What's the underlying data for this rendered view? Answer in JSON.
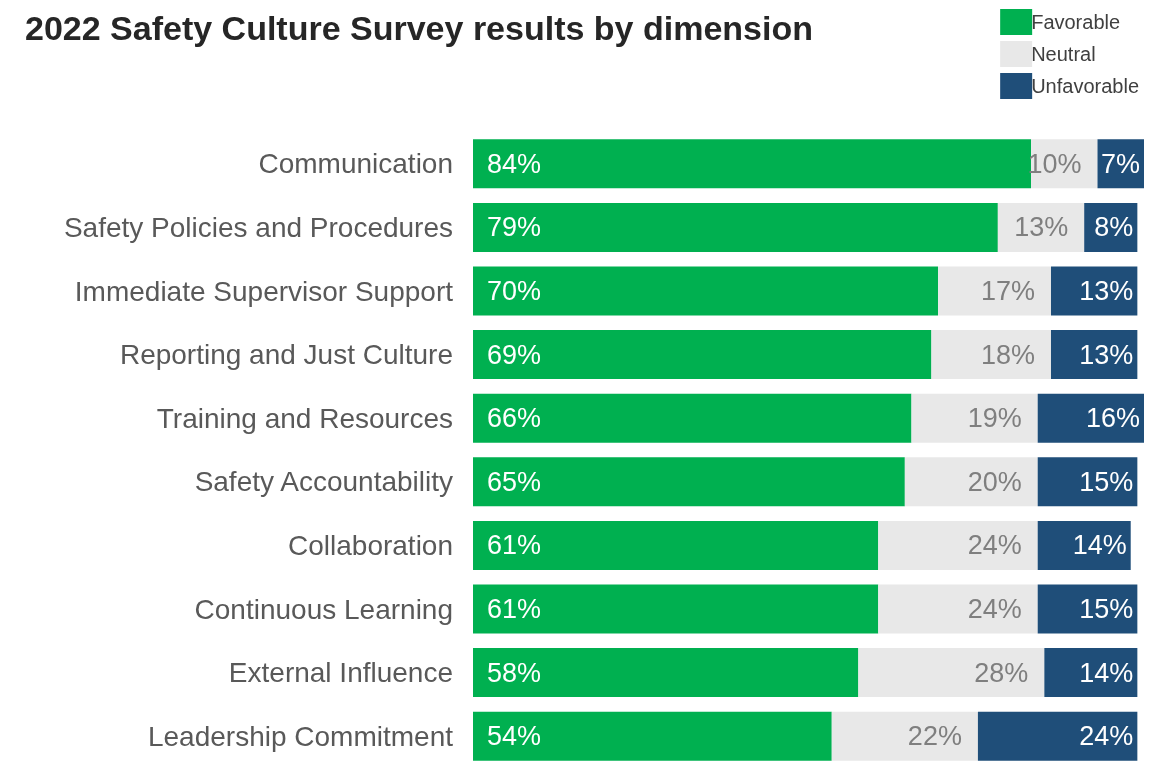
{
  "chart_data": {
    "type": "bar",
    "title": "2022 Safety Culture Survey results by dimension",
    "orientation": "horizontal",
    "stacked": true,
    "legend": "top right",
    "categories": [
      "Communication",
      "Safety Policies and Procedures",
      "Immediate Supervisor Support",
      "Reporting and Just Culture",
      "Training and Resources",
      "Safety Accountability",
      "Collaboration",
      "Continuous Learning",
      "External Influence",
      "Leadership Commitment"
    ],
    "series": [
      {
        "name": "Favorable",
        "color": "#00b050",
        "values": [
          84,
          79,
          70,
          69,
          66,
          65,
          61,
          61,
          58,
          54
        ],
        "value_labels": [
          "84%",
          "79%",
          "70%",
          "69%",
          "66%",
          "65%",
          "61%",
          "61%",
          "58%",
          "54%"
        ]
      },
      {
        "name": "Neutral",
        "color": "#e8e8e8",
        "values": [
          10,
          13,
          17,
          18,
          19,
          20,
          24,
          24,
          28,
          22
        ],
        "value_labels": [
          "10%",
          "13%",
          "17%",
          "18%",
          "19%",
          "20%",
          "24%",
          "24%",
          "28%",
          "22%"
        ]
      },
      {
        "name": "Unfavorable",
        "color": "#1f4e79",
        "values": [
          7,
          8,
          13,
          13,
          16,
          15,
          14,
          15,
          14,
          24
        ],
        "value_labels": [
          "7%",
          "8%",
          "13%",
          "13%",
          "16%",
          "15%",
          "14%",
          "15%",
          "14%",
          "24%"
        ]
      }
    ]
  }
}
